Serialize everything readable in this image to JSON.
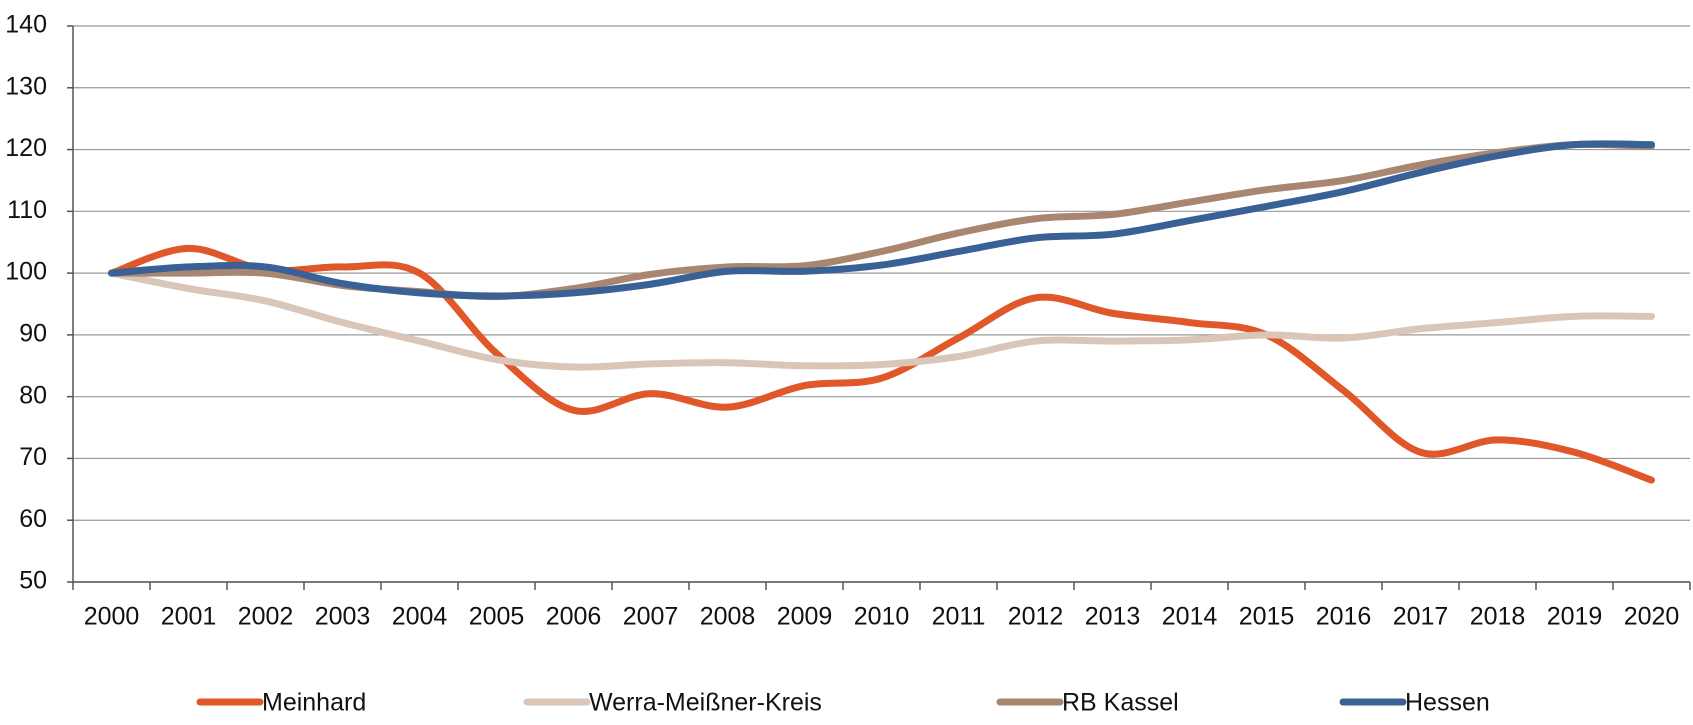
{
  "chart_data": {
    "type": "line",
    "categories": [
      "2000",
      "2001",
      "2002",
      "2003",
      "2004",
      "2005",
      "2006",
      "2007",
      "2008",
      "2009",
      "2010",
      "2011",
      "2012",
      "2013",
      "2014",
      "2015",
      "2016",
      "2017",
      "2018",
      "2019",
      "2020"
    ],
    "series": [
      {
        "name": "Meinhard",
        "color": "#e0572a",
        "values": [
          100,
          104,
          100.5,
          101,
          100,
          87,
          77.8,
          80.5,
          78.3,
          81.8,
          83,
          89.5,
          96,
          93.5,
          92,
          90,
          81,
          71,
          73,
          71,
          66.5
        ]
      },
      {
        "name": "Werra-Meißner-Kreis",
        "color": "#d9c6b9",
        "values": [
          100,
          97.5,
          95.5,
          92,
          89,
          86,
          84.8,
          85.3,
          85.5,
          85,
          85.2,
          86.5,
          89,
          89,
          89.2,
          90,
          89.5,
          91,
          92,
          93,
          93
        ]
      },
      {
        "name": "RB Kassel",
        "color": "#a88670",
        "values": [
          100,
          100,
          100,
          98,
          97,
          96.2,
          97.5,
          99.8,
          101,
          101.2,
          103.5,
          106.5,
          108.8,
          109.5,
          111.5,
          113.5,
          115,
          117.5,
          119.5,
          120.8,
          120.5
        ]
      },
      {
        "name": "Hessen",
        "color": "#3a6196",
        "values": [
          100,
          101,
          101,
          98.3,
          96.8,
          96.3,
          96.8,
          98.2,
          100.3,
          100.3,
          101.3,
          103.5,
          105.7,
          106.3,
          108.5,
          110.8,
          113.2,
          116.3,
          119,
          120.8,
          120.8
        ]
      }
    ],
    "ylim": [
      50,
      140
    ],
    "yticks": [
      50,
      60,
      70,
      80,
      90,
      100,
      110,
      120,
      130,
      140
    ],
    "grid": true,
    "legend": "bottom"
  }
}
